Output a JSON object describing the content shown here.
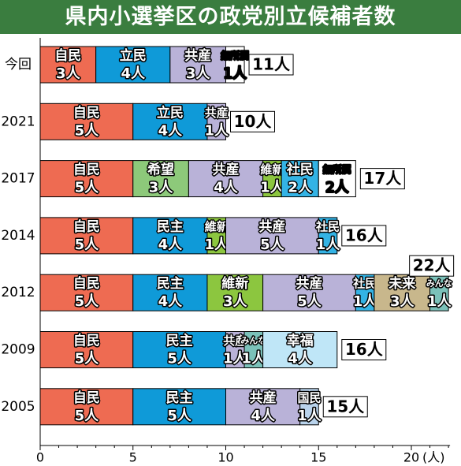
{
  "title": "県内小選挙区の政党別立候補者数",
  "colors": {
    "title_bg": "#3a7d3f",
    "自民": "#ee6b52",
    "立民": "#0f9ad8",
    "民主": "#0f9ad8",
    "共産": "#b9b2d8",
    "希望": "#8dc97a",
    "維新": "#8cc63f",
    "社民": "#33b3e5",
    "国民": "#b9d3ec",
    "みんな": "#7bc1b9",
    "未来": "#c8b78c",
    "幸福": "#bfe6f7",
    "無所属": "#ffffff"
  },
  "chart_data": {
    "type": "bar",
    "orientation": "horizontal",
    "stacked": true,
    "title": "県内小選挙区の政党別立候補者数",
    "xlim": [
      0,
      22
    ],
    "x_ticks": [
      0,
      5,
      10,
      15,
      20
    ],
    "x_unit": "(人)",
    "rows": [
      {
        "label": "今回",
        "total": "11人",
        "segments": [
          {
            "party": "自民",
            "value": 3,
            "text": "3人"
          },
          {
            "party": "立民",
            "value": 4,
            "text": "4人"
          },
          {
            "party": "共産",
            "value": 3,
            "text": "3人"
          },
          {
            "party": "無所属",
            "value": 1,
            "text": "1人"
          }
        ]
      },
      {
        "label": "2021",
        "total": "10人",
        "segments": [
          {
            "party": "自民",
            "value": 5,
            "text": "5人"
          },
          {
            "party": "立民",
            "value": 4,
            "text": "4人"
          },
          {
            "party": "共産",
            "value": 1,
            "text": "1人"
          }
        ]
      },
      {
        "label": "2017",
        "total": "17人",
        "segments": [
          {
            "party": "自民",
            "value": 5,
            "text": "5人"
          },
          {
            "party": "希望",
            "value": 3,
            "text": "3人"
          },
          {
            "party": "共産",
            "value": 4,
            "text": "4人"
          },
          {
            "party": "維新",
            "value": 1,
            "text": "1人"
          },
          {
            "party": "社民",
            "value": 2,
            "text": "2人"
          },
          {
            "party": "無所属",
            "value": 2,
            "text": "2人"
          }
        ]
      },
      {
        "label": "2014",
        "total": "16人",
        "segments": [
          {
            "party": "自民",
            "value": 5,
            "text": "5人"
          },
          {
            "party": "民主",
            "value": 4,
            "text": "4人"
          },
          {
            "party": "維新",
            "value": 1,
            "text": "1人"
          },
          {
            "party": "共産",
            "value": 5,
            "text": "5人"
          },
          {
            "party": "社民",
            "value": 1,
            "text": "1人"
          }
        ]
      },
      {
        "label": "2012",
        "total": "22人",
        "segments": [
          {
            "party": "自民",
            "value": 5,
            "text": "5人"
          },
          {
            "party": "民主",
            "value": 4,
            "text": "4人"
          },
          {
            "party": "維新",
            "value": 3,
            "text": "3人"
          },
          {
            "party": "共産",
            "value": 5,
            "text": "5人"
          },
          {
            "party": "社民",
            "value": 1,
            "text": "1人"
          },
          {
            "party": "未来",
            "value": 3,
            "text": "3人"
          },
          {
            "party": "みんな",
            "value": 1,
            "text": "1人"
          }
        ]
      },
      {
        "label": "2009",
        "total": "16人",
        "segments": [
          {
            "party": "自民",
            "value": 5,
            "text": "5人"
          },
          {
            "party": "民主",
            "value": 5,
            "text": "5人"
          },
          {
            "party": "共産",
            "value": 1,
            "text": "1人"
          },
          {
            "party": "みんな",
            "value": 1,
            "text": "1人"
          },
          {
            "party": "幸福",
            "value": 4,
            "text": "4人"
          }
        ]
      },
      {
        "label": "2005",
        "total": "15人",
        "segments": [
          {
            "party": "自民",
            "value": 5,
            "text": "5人"
          },
          {
            "party": "民主",
            "value": 5,
            "text": "5人"
          },
          {
            "party": "共産",
            "value": 4,
            "text": "4人"
          },
          {
            "party": "国民",
            "value": 1,
            "text": "1人"
          }
        ]
      }
    ]
  }
}
